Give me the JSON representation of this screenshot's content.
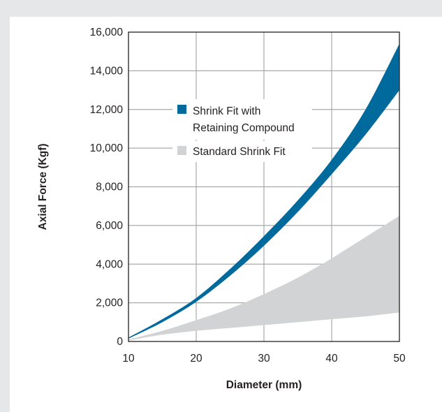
{
  "chart_data": {
    "type": "area",
    "title": "",
    "xlabel": "Diameter (mm)",
    "ylabel": "Axial Force (Kgf)",
    "xlim": [
      10,
      50
    ],
    "ylim": [
      0,
      16000
    ],
    "x_ticks": [
      10,
      20,
      30,
      40,
      50
    ],
    "y_ticks": [
      0,
      2000,
      4000,
      6000,
      8000,
      10000,
      12000,
      14000,
      16000
    ],
    "x_tick_labels": [
      "10",
      "20",
      "30",
      "40",
      "50"
    ],
    "y_tick_labels": [
      "0",
      "2,000",
      "4,000",
      "6,000",
      "8,000",
      "10,000",
      "12,000",
      "14,000",
      "16,000"
    ],
    "grid": true,
    "legend_position": "center-left",
    "series": [
      {
        "name": "Shrink Fit with Retaining Compound",
        "color": "#006a9c",
        "x": [
          10,
          15,
          20,
          25,
          30,
          35,
          40,
          45,
          50
        ],
        "upper": [
          200,
          1150,
          2250,
          3750,
          5450,
          7300,
          9400,
          12000,
          15400
        ],
        "lower": [
          150,
          1000,
          2050,
          3400,
          4950,
          6700,
          8650,
          10700,
          13000
        ]
      },
      {
        "name": "Standard Shrink Fit",
        "color": "#d1d3d4",
        "x": [
          10,
          15,
          20,
          25,
          30,
          35,
          40,
          45,
          50
        ],
        "upper": [
          100,
          550,
          1100,
          1700,
          2450,
          3300,
          4300,
          5400,
          6500
        ],
        "lower": [
          50,
          350,
          550,
          700,
          850,
          1000,
          1150,
          1300,
          1500
        ]
      }
    ],
    "legend": [
      {
        "label_lines": [
          "Shrink Fit with",
          "Retaining Compound"
        ],
        "color": "#006a9c"
      },
      {
        "label_lines": [
          "Standard Shrink Fit"
        ],
        "color": "#d1d3d4"
      }
    ]
  }
}
